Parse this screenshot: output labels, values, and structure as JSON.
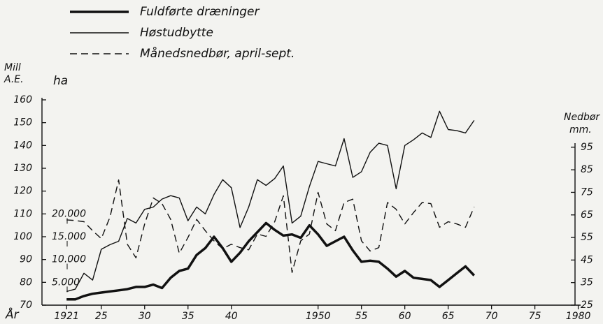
{
  "chart_data": {
    "type": "line",
    "legend": {
      "corner": "top-left"
    },
    "x_label": "År",
    "y_label": [
      "Mill",
      "A.E."
    ],
    "y3_label": "ha",
    "y2_label": [
      "Nedbør",
      "mm."
    ],
    "x": [
      1921,
      1922,
      1923,
      1924,
      1925,
      1926,
      1927,
      1928,
      1929,
      1930,
      1931,
      1932,
      1933,
      1934,
      1935,
      1936,
      1937,
      1938,
      1939,
      1940,
      1941,
      1942,
      1943,
      1944,
      1945,
      1946,
      1947,
      1948,
      1949,
      1950,
      1951,
      1952,
      1953,
      1954,
      1955,
      1956,
      1957,
      1958,
      1959,
      1960,
      1961,
      1962,
      1963,
      1964,
      1965,
      1966,
      1967,
      1968
    ],
    "xlim": [
      1918,
      1981
    ],
    "xticks": [
      {
        "value": 1921,
        "label": "1921"
      },
      {
        "value": 1925,
        "label": "25"
      },
      {
        "value": 1930,
        "label": "30"
      },
      {
        "value": 1935,
        "label": "35"
      },
      {
        "value": 1940,
        "label": "40"
      },
      1950,
      {
        "value": 1955,
        "label": "55"
      },
      {
        "value": 1960,
        "label": "60"
      },
      {
        "value": 1965,
        "label": "65"
      },
      {
        "value": 1970,
        "label": "70"
      },
      {
        "value": 1975,
        "label": "75"
      },
      1980
    ],
    "ylim": [
      70,
      160
    ],
    "yticks": [
      70,
      80,
      90,
      100,
      110,
      120,
      130,
      140,
      150,
      160
    ],
    "y3lim": [
      0,
      45000
    ],
    "y3ticks": [
      {
        "value": 5000,
        "label": "5.000"
      },
      {
        "value": 10000,
        "label": "10.000"
      },
      {
        "value": 15000,
        "label": "15.000"
      },
      {
        "value": 20000,
        "label": "20.000"
      }
    ],
    "y2lim": [
      25,
      116
    ],
    "y2ticks": [
      25,
      35,
      45,
      55,
      65,
      75,
      85,
      95
    ],
    "series": [
      {
        "name": "Fuldførte dræninger",
        "color": "#111111",
        "linewidth": 3.5,
        "dashed": false,
        "axis": "y3",
        "values": [
          1250,
          1250,
          2000,
          2500,
          2750,
          3000,
          3250,
          3500,
          4000,
          4000,
          4500,
          3750,
          6000,
          7500,
          8000,
          11000,
          12500,
          15000,
          12500,
          9500,
          11500,
          14000,
          16000,
          18000,
          16500,
          15250,
          15500,
          14750,
          17500,
          15500,
          13000,
          14000,
          15000,
          12000,
          9500,
          9750,
          9500,
          8000,
          6250,
          7500,
          6000,
          5750,
          5500,
          4000,
          5500,
          7000,
          8500,
          6500
        ]
      },
      {
        "name": "Høstudbytte",
        "color": "#111111",
        "linewidth": 1.4,
        "dashed": false,
        "axis": "y",
        "values": [
          76,
          77,
          84,
          81,
          94.5,
          96.5,
          98,
          108,
          106,
          112,
          113,
          116.5,
          118,
          117,
          107,
          113,
          110,
          118.5,
          125,
          121.5,
          104,
          113,
          125,
          122.5,
          125.5,
          131,
          106,
          109,
          122,
          133,
          132,
          131,
          143,
          126,
          128.5,
          137,
          141,
          140,
          121,
          140,
          142.5,
          145.5,
          143.5,
          155,
          147,
          146.5,
          145.5,
          151
        ]
      },
      {
        "name": "Månedsnedbør, april-sept.",
        "color": "#111111",
        "linewidth": 1.4,
        "dashed": true,
        "axis": "y2",
        "values": [
          62.8,
          62.5,
          62,
          58,
          54.5,
          64,
          80.5,
          52,
          46,
          61,
          72.5,
          70,
          63,
          48,
          55,
          63,
          58,
          53.5,
          50,
          52,
          50.5,
          49.5,
          56.5,
          55.5,
          62,
          73.5,
          39.5,
          53.5,
          56.5,
          75,
          61,
          58,
          70.5,
          72,
          53.5,
          49,
          50.5,
          70.5,
          67.5,
          61,
          66,
          70.5,
          70,
          59.5,
          62,
          61,
          59.5,
          68.5
        ]
      }
    ]
  }
}
